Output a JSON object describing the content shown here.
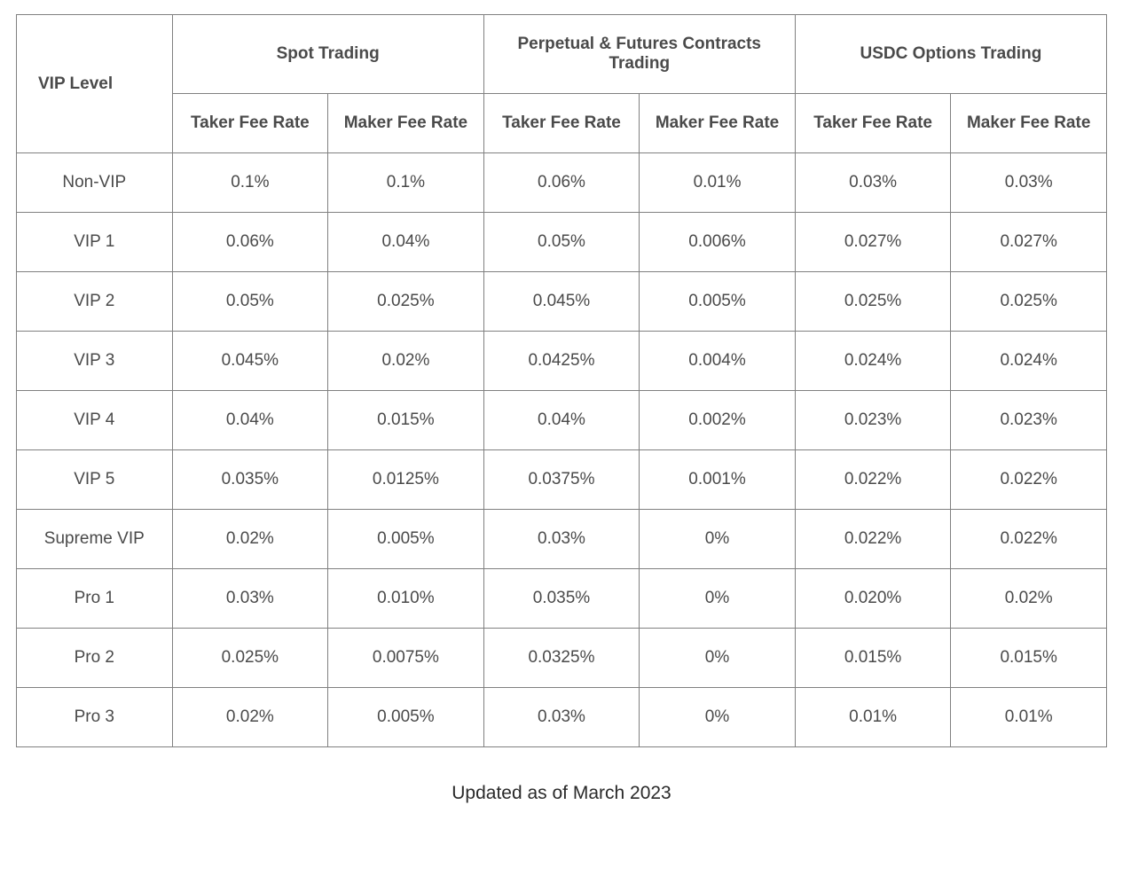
{
  "table": {
    "type": "table",
    "background_color": "#ffffff",
    "border_color": "#808080",
    "text_color": "#4a4a4a",
    "header_fontweight": 700,
    "fontsize": 19,
    "col_count": 7,
    "columns": {
      "vip_level": "VIP Level",
      "groups": [
        "Spot Trading",
        "Perpetual & Futures Contracts Trading",
        "USDC Options Trading"
      ],
      "sub_headers": [
        "Taker Fee Rate",
        "Maker Fee Rate",
        "Taker Fee Rate",
        "Maker Fee Rate",
        "Taker Fee Rate",
        "Maker Fee Rate"
      ]
    },
    "rows": [
      {
        "level": "Non-VIP",
        "cells": [
          "0.1%",
          "0.1%",
          "0.06%",
          "0.01%",
          "0.03%",
          "0.03%"
        ]
      },
      {
        "level": "VIP 1",
        "cells": [
          "0.06%",
          "0.04%",
          "0.05%",
          "0.006%",
          "0.027%",
          "0.027%"
        ]
      },
      {
        "level": "VIP 2",
        "cells": [
          "0.05%",
          "0.025%",
          "0.045%",
          "0.005%",
          "0.025%",
          "0.025%"
        ]
      },
      {
        "level": "VIP 3",
        "cells": [
          "0.045%",
          "0.02%",
          "0.0425%",
          "0.004%",
          "0.024%",
          "0.024%"
        ]
      },
      {
        "level": "VIP 4",
        "cells": [
          "0.04%",
          "0.015%",
          "0.04%",
          "0.002%",
          "0.023%",
          "0.023%"
        ]
      },
      {
        "level": "VIP 5",
        "cells": [
          "0.035%",
          "0.0125%",
          "0.0375%",
          "0.001%",
          "0.022%",
          "0.022%"
        ]
      },
      {
        "level": "Supreme VIP",
        "cells": [
          "0.02%",
          "0.005%",
          "0.03%",
          "0%",
          "0.022%",
          "0.022%"
        ]
      },
      {
        "level": "Pro 1",
        "cells": [
          "0.03%",
          "0.010%",
          "0.035%",
          "0%",
          "0.020%",
          "0.02%"
        ]
      },
      {
        "level": "Pro 2",
        "cells": [
          "0.025%",
          "0.0075%",
          "0.0325%",
          "0%",
          "0.015%",
          "0.015%"
        ]
      },
      {
        "level": "Pro 3",
        "cells": [
          "0.02%",
          "0.005%",
          "0.03%",
          "0%",
          "0.01%",
          "0.01%"
        ]
      }
    ]
  },
  "footer": {
    "text": "Updated as of March 2023"
  }
}
